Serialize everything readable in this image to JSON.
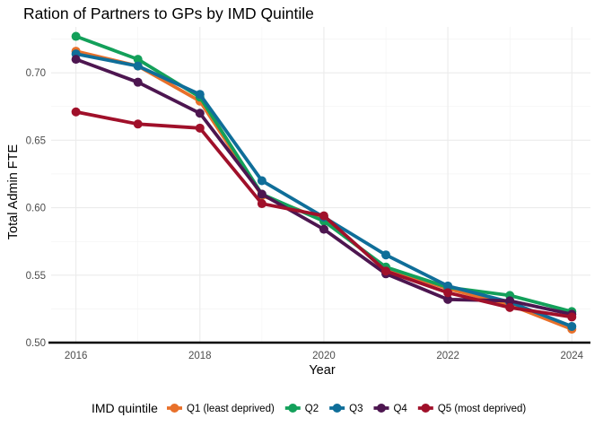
{
  "chart_data": {
    "type": "line",
    "title": "Ration of Partners to GPs by IMD Quintile",
    "xlabel": "Year",
    "ylabel": "Total Admin FTE",
    "x": [
      2016,
      2017,
      2018,
      2019,
      2020,
      2021,
      2022,
      2023,
      2024
    ],
    "xlim": [
      2015.6,
      2024.3
    ],
    "ylim": [
      0.5,
      0.734
    ],
    "x_ticks": [
      2016,
      2018,
      2020,
      2022,
      2024
    ],
    "x_tick_labels": [
      "2016",
      "2018",
      "2020",
      "2022",
      "2024"
    ],
    "y_ticks": [
      0.5,
      0.55,
      0.6,
      0.65,
      0.7
    ],
    "y_tick_labels": [
      "0.50",
      "0.55",
      "0.60",
      "0.65",
      "0.70"
    ],
    "grid": true,
    "legend_title": "IMD quintile",
    "legend_position": "bottom",
    "series": [
      {
        "name": "Q1 (least deprived)",
        "color": "#e8702a",
        "values": [
          0.716,
          0.705,
          0.679,
          0.609,
          0.591,
          0.555,
          0.54,
          0.528,
          0.51
        ]
      },
      {
        "name": "Q2",
        "color": "#13a05a",
        "values": [
          0.727,
          0.71,
          0.682,
          0.61,
          0.59,
          0.556,
          0.541,
          0.535,
          0.523
        ]
      },
      {
        "name": "Q3",
        "color": "#0f6e99",
        "values": [
          0.714,
          0.705,
          0.684,
          0.62,
          0.593,
          0.565,
          0.542,
          0.53,
          0.512
        ]
      },
      {
        "name": "Q4",
        "color": "#4d1650",
        "values": [
          0.71,
          0.693,
          0.67,
          0.61,
          0.584,
          0.551,
          0.532,
          0.531,
          0.521
        ]
      },
      {
        "name": "Q5 (most deprived)",
        "color": "#a0102a",
        "values": [
          0.671,
          0.662,
          0.659,
          0.603,
          0.594,
          0.553,
          0.537,
          0.526,
          0.519
        ]
      }
    ]
  }
}
